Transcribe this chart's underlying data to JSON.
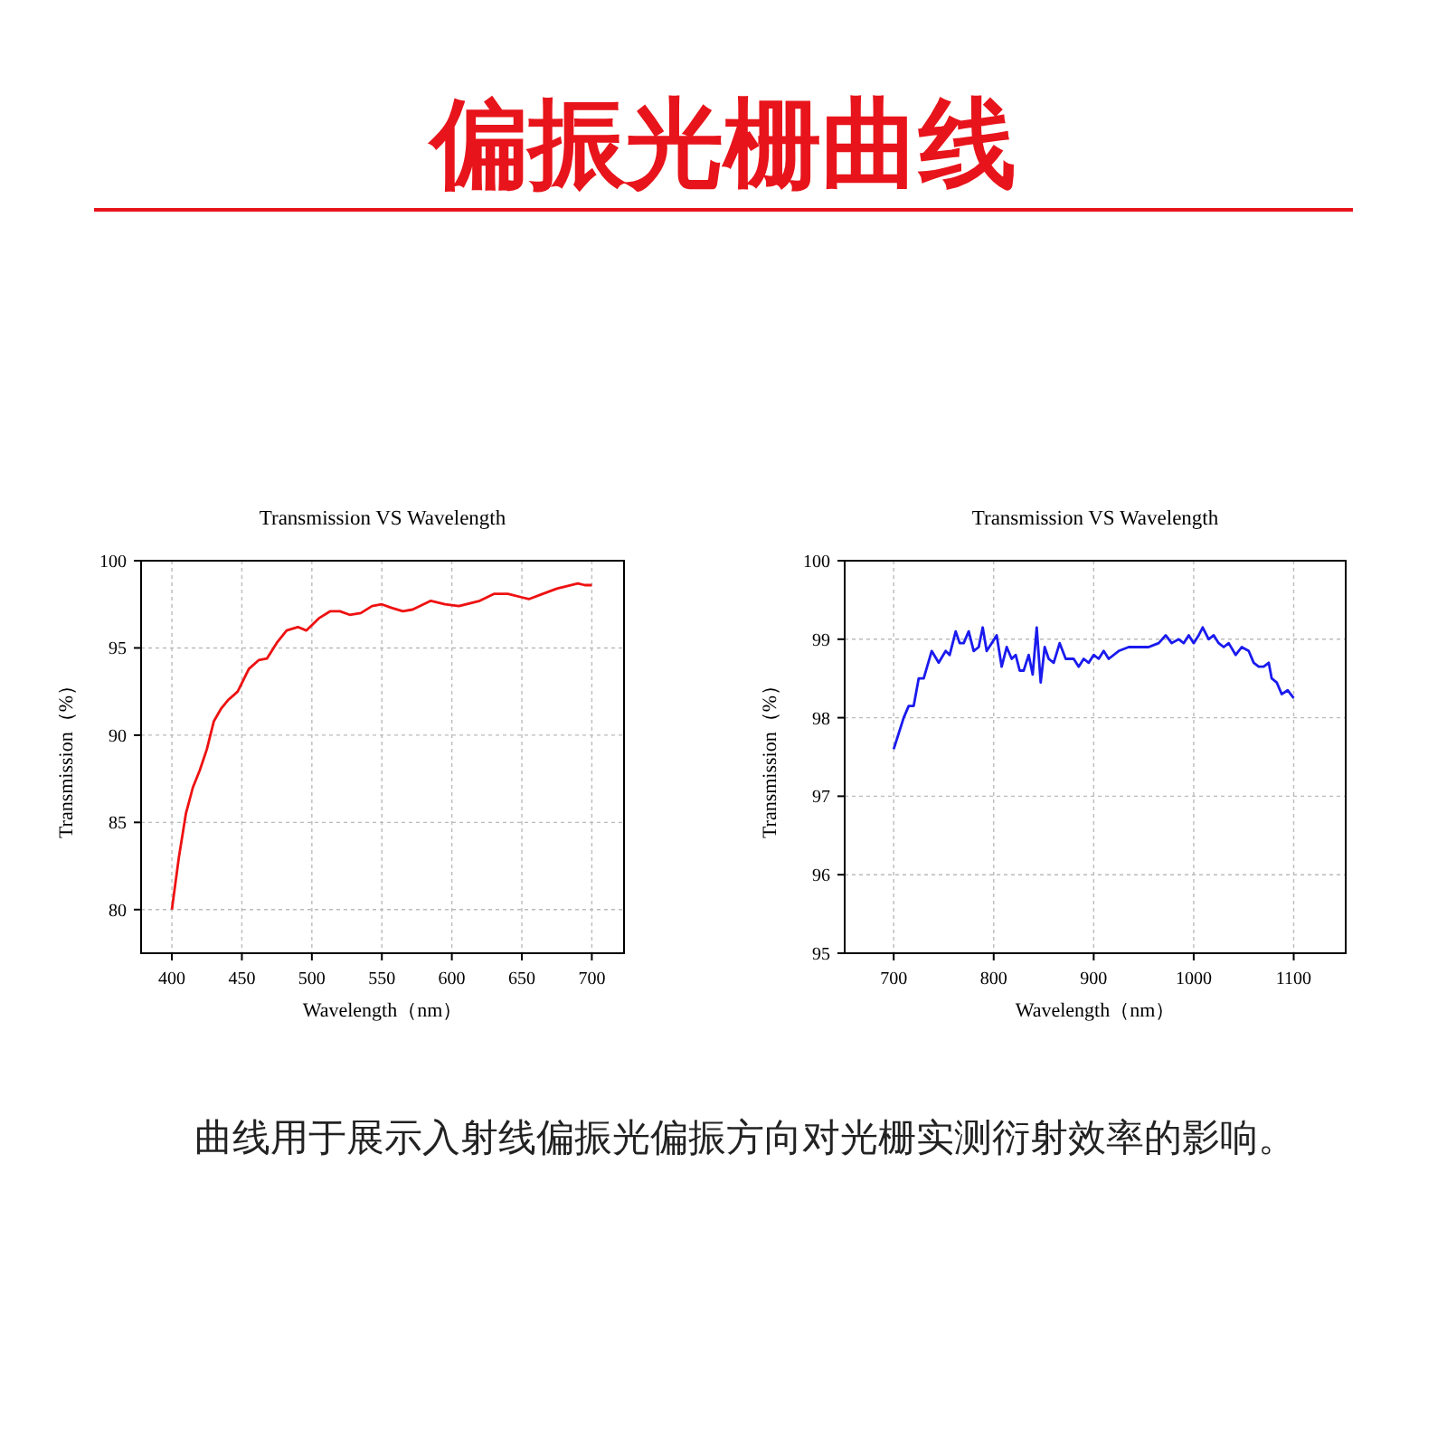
{
  "chart_data": [
    {
      "type": "other",
      "title": "偏振光栅曲线"
    },
    {
      "type": "line",
      "title": "Transmission VS Wavelength",
      "xlabel": "Wavelength（nm）",
      "ylabel": "Transmission（%）",
      "xlim": [
        378,
        723
      ],
      "ylim": [
        77.5,
        100
      ],
      "xticks": [
        400,
        450,
        500,
        550,
        600,
        650,
        700
      ],
      "yticks": [
        80,
        85,
        90,
        95,
        100
      ],
      "grid": true,
      "marker": "none",
      "line_style": "solid",
      "series": [
        {
          "color": "#ee1111",
          "x": [
            400,
            405,
            410,
            415,
            420,
            425,
            430,
            435,
            440,
            447,
            455,
            462,
            468,
            475,
            482,
            490,
            496,
            505,
            513,
            520,
            527,
            535,
            543,
            550,
            557,
            565,
            572,
            585,
            595,
            605,
            620,
            630,
            640,
            650,
            655,
            665,
            675,
            690,
            695,
            700
          ],
          "values": [
            80,
            83,
            85.5,
            87,
            88,
            89.2,
            90.8,
            91.5,
            92,
            92.5,
            93.8,
            94.3,
            94.4,
            95.3,
            96,
            96.2,
            96,
            96.7,
            97.1,
            97.1,
            96.9,
            97,
            97.4,
            97.5,
            97.3,
            97.1,
            97.2,
            97.7,
            97.5,
            97.4,
            97.7,
            98.1,
            98.1,
            97.9,
            97.8,
            98.1,
            98.4,
            98.7,
            98.6,
            98.6
          ]
        }
      ]
    },
    {
      "type": "line",
      "title": "Transmission VS Wavelength",
      "xlabel": "Wavelength（nm）",
      "ylabel": "Transmission（%）",
      "xlim": [
        651,
        1152
      ],
      "ylim": [
        95,
        100
      ],
      "xticks": [
        700,
        800,
        900,
        1000,
        1100
      ],
      "yticks": [
        95,
        96,
        97,
        98,
        99,
        100
      ],
      "grid": true,
      "marker": "none",
      "line_style": "solid",
      "series": [
        {
          "color": "#1a1aee",
          "x": [
            700,
            705,
            710,
            715,
            720,
            725,
            730,
            738,
            745,
            752,
            756,
            762,
            766,
            770,
            775,
            780,
            785,
            789,
            793,
            798,
            803,
            808,
            813,
            818,
            822,
            826,
            830,
            835,
            839,
            843,
            847,
            851,
            855,
            860,
            866,
            872,
            880,
            885,
            890,
            895,
            900,
            905,
            910,
            915,
            925,
            935,
            945,
            955,
            965,
            972,
            978,
            985,
            990,
            995,
            1000,
            1005,
            1009,
            1015,
            1020,
            1025,
            1030,
            1035,
            1042,
            1048,
            1055,
            1060,
            1065,
            1070,
            1075,
            1078,
            1083,
            1088,
            1094,
            1097,
            1100
          ],
          "values": [
            97.6,
            97.8,
            98.0,
            98.15,
            98.15,
            98.5,
            98.5,
            98.85,
            98.7,
            98.85,
            98.8,
            99.1,
            98.95,
            98.95,
            99.1,
            98.85,
            98.9,
            99.15,
            98.85,
            98.95,
            99.05,
            98.65,
            98.9,
            98.75,
            98.8,
            98.6,
            98.6,
            98.8,
            98.55,
            99.15,
            98.45,
            98.9,
            98.75,
            98.7,
            98.95,
            98.75,
            98.75,
            98.65,
            98.75,
            98.7,
            98.8,
            98.75,
            98.85,
            98.75,
            98.85,
            98.9,
            98.9,
            98.9,
            98.95,
            99.05,
            98.95,
            99.0,
            98.95,
            99.05,
            98.95,
            99.05,
            99.15,
            99.0,
            99.05,
            98.95,
            98.9,
            98.95,
            98.8,
            98.9,
            98.85,
            98.7,
            98.65,
            98.65,
            98.7,
            98.5,
            98.45,
            98.3,
            98.35,
            98.3,
            98.25
          ]
        }
      ]
    },
    {
      "type": "other",
      "annotations": [
        "曲线用于展示入射线偏振光偏振方向对光栅实测衍射效率的影响。"
      ]
    }
  ]
}
